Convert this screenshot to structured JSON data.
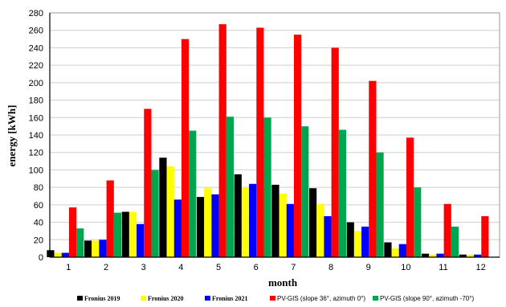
{
  "chart_data": {
    "type": "bar",
    "title": "",
    "xlabel": "month",
    "ylabel": "energy [kWh]",
    "ylim": [
      0,
      280
    ],
    "yticks": [
      0,
      20,
      40,
      60,
      80,
      100,
      120,
      140,
      160,
      180,
      200,
      220,
      240,
      260,
      280
    ],
    "grid": true,
    "legend_position": "bottom",
    "categories": [
      "1",
      "2",
      "3",
      "4",
      "5",
      "6",
      "7",
      "8",
      "9",
      "10",
      "11",
      "12"
    ],
    "series": [
      {
        "name": "Fronius 2019",
        "color": "#000000",
        "values": [
          8,
          19,
          52,
          114,
          69,
          95,
          83,
          79,
          40,
          17,
          4,
          3
        ]
      },
      {
        "name": "Fronius 2020",
        "color": "#ffff00",
        "values": [
          5,
          19,
          52,
          104,
          79,
          80,
          73,
          61,
          30,
          10,
          3,
          3
        ]
      },
      {
        "name": "Fronius 2021",
        "color": "#0000ff",
        "values": [
          5,
          20,
          38,
          66,
          72,
          84,
          61,
          47,
          35,
          15,
          4,
          3
        ]
      },
      {
        "name": "PV-GIS (slope 36°, azimuth 0°)",
        "color": "#ff0000",
        "values": [
          57,
          88,
          170,
          250,
          267,
          263,
          255,
          240,
          202,
          137,
          61,
          47
        ]
      },
      {
        "name": "PV-GIS (slope 90°, azimuth -70°)",
        "color": "#00a550",
        "values": [
          33,
          51,
          100,
          145,
          161,
          160,
          150,
          146,
          120,
          80,
          35,
          0
        ]
      }
    ]
  }
}
